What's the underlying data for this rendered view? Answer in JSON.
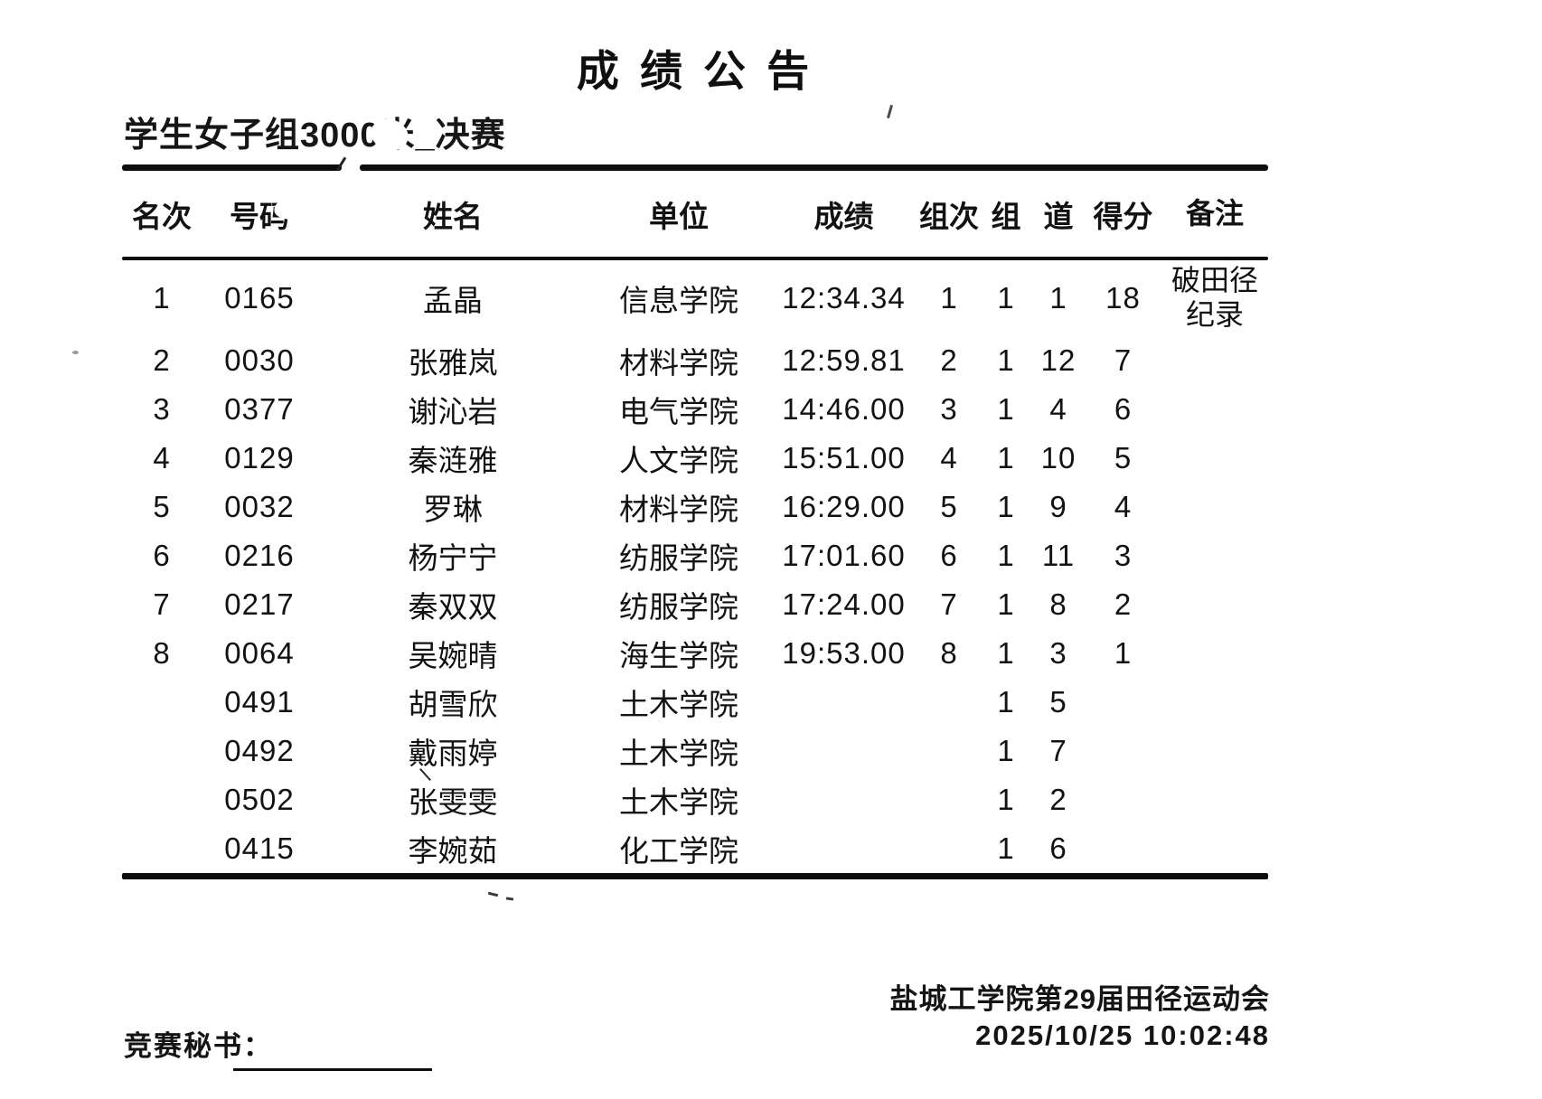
{
  "page": {
    "title": "成 绩 公 告",
    "event_title": "学生女子组3000米_决赛",
    "table": {
      "headers": {
        "rank": "名次",
        "bib": "号码",
        "name": "姓名",
        "unit": "单位",
        "result": "成绩",
        "heat": "组次",
        "group": "组",
        "lane": "道",
        "points": "得分",
        "remark": "备注"
      },
      "rows": [
        {
          "rank": "1",
          "bib": "0165",
          "name": "孟晶",
          "unit": "信息学院",
          "result": "12:34.34",
          "heat": "1",
          "group": "1",
          "lane": "1",
          "points": "18",
          "remark": "破田径纪录"
        },
        {
          "rank": "2",
          "bib": "0030",
          "name": "张雅岚",
          "unit": "材料学院",
          "result": "12:59.81",
          "heat": "2",
          "group": "1",
          "lane": "12",
          "points": "7",
          "remark": ""
        },
        {
          "rank": "3",
          "bib": "0377",
          "name": "谢沁岩",
          "unit": "电气学院",
          "result": "14:46.00",
          "heat": "3",
          "group": "1",
          "lane": "4",
          "points": "6",
          "remark": ""
        },
        {
          "rank": "4",
          "bib": "0129",
          "name": "秦涟雅",
          "unit": "人文学院",
          "result": "15:51.00",
          "heat": "4",
          "group": "1",
          "lane": "10",
          "points": "5",
          "remark": ""
        },
        {
          "rank": "5",
          "bib": "0032",
          "name": "罗琳",
          "unit": "材料学院",
          "result": "16:29.00",
          "heat": "5",
          "group": "1",
          "lane": "9",
          "points": "4",
          "remark": ""
        },
        {
          "rank": "6",
          "bib": "0216",
          "name": "杨宁宁",
          "unit": "纺服学院",
          "result": "17:01.60",
          "heat": "6",
          "group": "1",
          "lane": "11",
          "points": "3",
          "remark": ""
        },
        {
          "rank": "7",
          "bib": "0217",
          "name": "秦双双",
          "unit": "纺服学院",
          "result": "17:24.00",
          "heat": "7",
          "group": "1",
          "lane": "8",
          "points": "2",
          "remark": ""
        },
        {
          "rank": "8",
          "bib": "0064",
          "name": "吴婉晴",
          "unit": "海生学院",
          "result": "19:53.00",
          "heat": "8",
          "group": "1",
          "lane": "3",
          "points": "1",
          "remark": ""
        },
        {
          "rank": "",
          "bib": "0491",
          "name": "胡雪欣",
          "unit": "土木学院",
          "result": "",
          "heat": "",
          "group": "1",
          "lane": "5",
          "points": "",
          "remark": ""
        },
        {
          "rank": "",
          "bib": "0492",
          "name": "戴雨婷",
          "unit": "土木学院",
          "result": "",
          "heat": "",
          "group": "1",
          "lane": "7",
          "points": "",
          "remark": ""
        },
        {
          "rank": "",
          "bib": "0502",
          "name": "张雯雯",
          "unit": "土木学院",
          "result": "",
          "heat": "",
          "group": "1",
          "lane": "2",
          "points": "",
          "remark": ""
        },
        {
          "rank": "",
          "bib": "0415",
          "name": "李婉茹",
          "unit": "化工学院",
          "result": "",
          "heat": "",
          "group": "1",
          "lane": "6",
          "points": "",
          "remark": ""
        }
      ]
    },
    "footer": {
      "meet_name": "盐城工学院第29届田径运动会",
      "timestamp": "2025/10/25 10:02:48",
      "secretary_label": "竞赛秘书："
    }
  }
}
